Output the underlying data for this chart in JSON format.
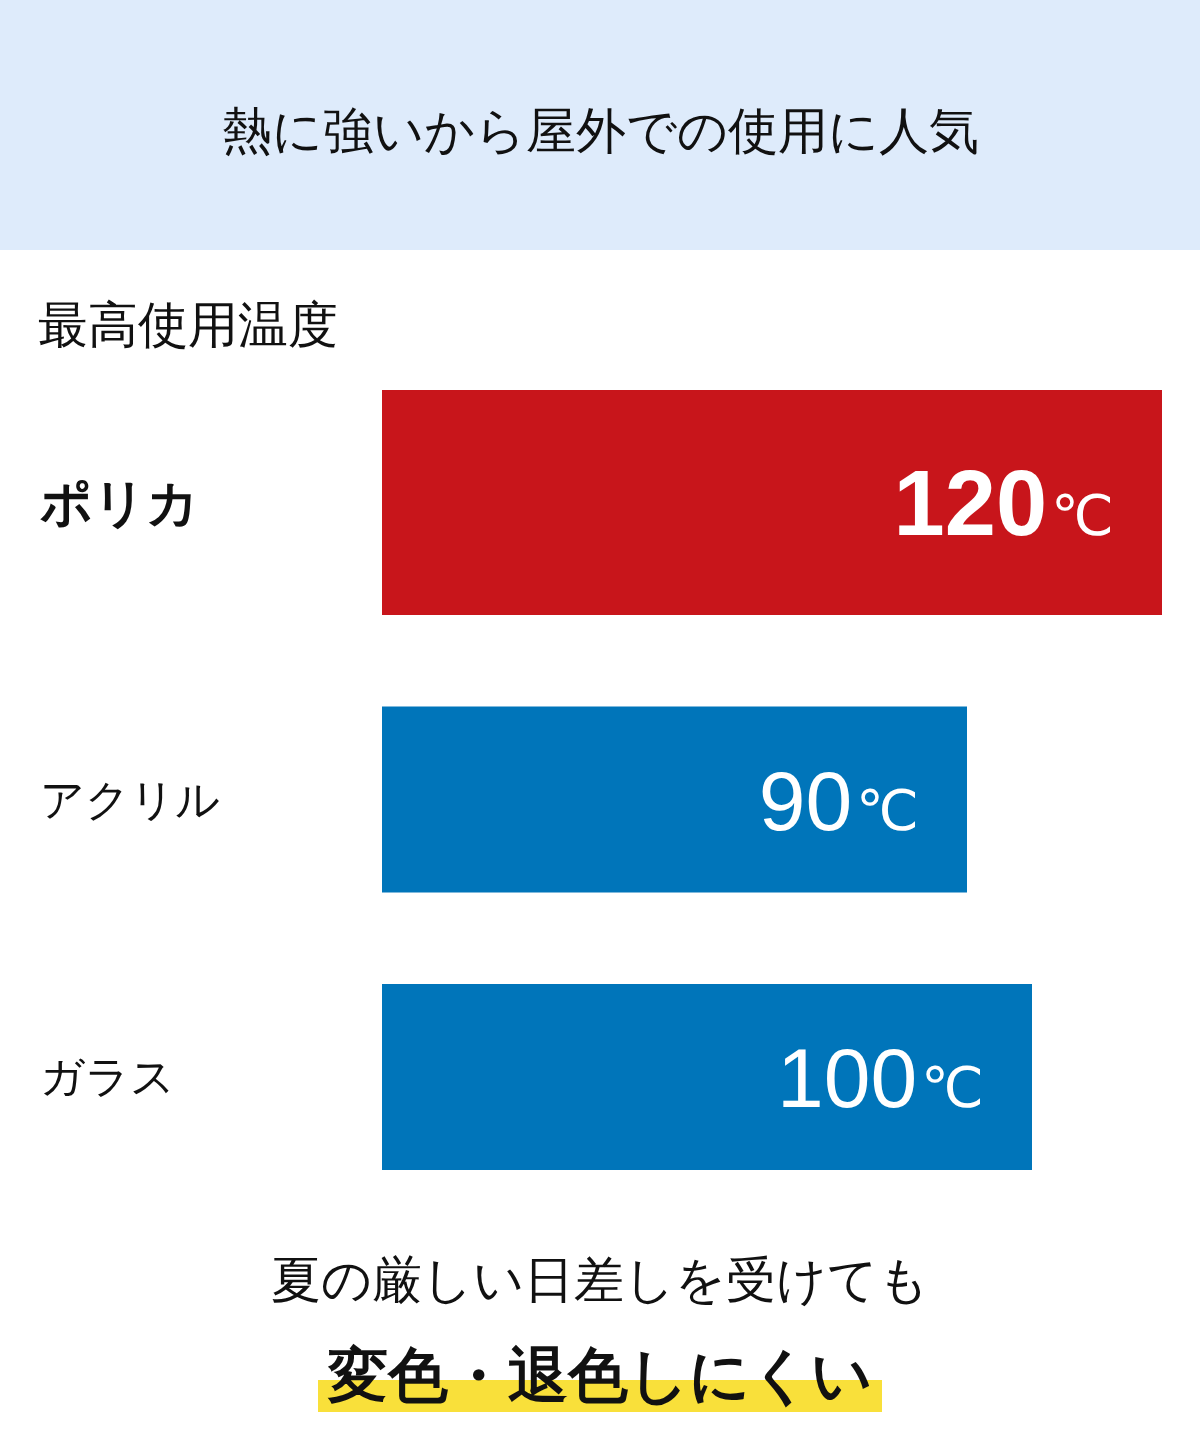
{
  "chart_data": {
    "type": "bar",
    "orientation": "horizontal",
    "title": "熱に強いから屋外での使用に人気",
    "subtitle": "最高使用温度",
    "categories": [
      "ポリカ",
      "アクリル",
      "ガラス"
    ],
    "values": [
      120,
      90,
      100
    ],
    "colors": [
      "#c8151b",
      "#0075ba",
      "#0075ba"
    ],
    "value_labels": [
      "120℃",
      "90℃",
      "100℃"
    ],
    "xlim": [
      0,
      120
    ],
    "tick_labels": "y",
    "annotations": [
      "夏の厳しい日差しを受けても",
      "変色・退色しにくい"
    ]
  }
}
